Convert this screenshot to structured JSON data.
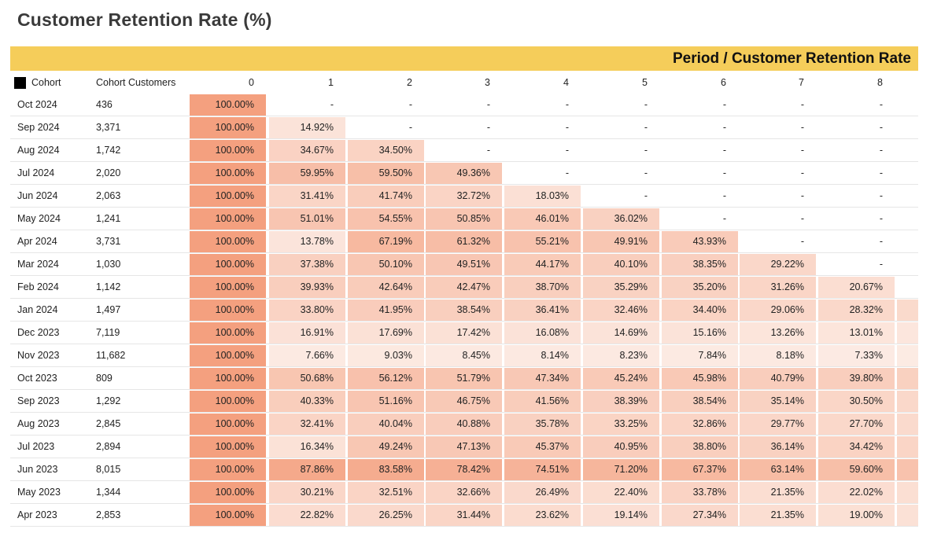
{
  "title": "Customer Retention Rate (%)",
  "banner": "Period / Customer Retention Rate",
  "headers": {
    "cohort": "Cohort",
    "customers": "Cohort Customers",
    "periods": [
      "0",
      "1",
      "2",
      "3",
      "4",
      "5",
      "6",
      "7",
      "8"
    ]
  },
  "colors": {
    "banner": "#f5cd5a",
    "legend_box": "#000000",
    "heat_low": "#fdf2ed",
    "heat_high": "#f4a07f"
  },
  "chart_data": {
    "type": "heatmap",
    "title": "Customer Retention Rate (%)",
    "x_title": "Period / Customer Retention Rate",
    "periods": [
      0,
      1,
      2,
      3,
      4,
      5,
      6,
      7,
      8
    ],
    "rows": [
      {
        "cohort": "Oct 2024",
        "customers": "436",
        "cells": [
          "100.00%",
          "-",
          "-",
          "-",
          "-",
          "-",
          "-",
          "-",
          "-"
        ]
      },
      {
        "cohort": "Sep 2024",
        "customers": "3,371",
        "cells": [
          "100.00%",
          "14.92%",
          "-",
          "-",
          "-",
          "-",
          "-",
          "-",
          "-"
        ]
      },
      {
        "cohort": "Aug 2024",
        "customers": "1,742",
        "cells": [
          "100.00%",
          "34.67%",
          "34.50%",
          "-",
          "-",
          "-",
          "-",
          "-",
          "-"
        ]
      },
      {
        "cohort": "Jul 2024",
        "customers": "2,020",
        "cells": [
          "100.00%",
          "59.95%",
          "59.50%",
          "49.36%",
          "-",
          "-",
          "-",
          "-",
          "-"
        ]
      },
      {
        "cohort": "Jun 2024",
        "customers": "2,063",
        "cells": [
          "100.00%",
          "31.41%",
          "41.74%",
          "32.72%",
          "18.03%",
          "-",
          "-",
          "-",
          "-"
        ]
      },
      {
        "cohort": "May 2024",
        "customers": "1,241",
        "cells": [
          "100.00%",
          "51.01%",
          "54.55%",
          "50.85%",
          "46.01%",
          "36.02%",
          "-",
          "-",
          "-"
        ]
      },
      {
        "cohort": "Apr 2024",
        "customers": "3,731",
        "cells": [
          "100.00%",
          "13.78%",
          "67.19%",
          "61.32%",
          "55.21%",
          "49.91%",
          "43.93%",
          "-",
          "-"
        ]
      },
      {
        "cohort": "Mar 2024",
        "customers": "1,030",
        "cells": [
          "100.00%",
          "37.38%",
          "50.10%",
          "49.51%",
          "44.17%",
          "40.10%",
          "38.35%",
          "29.22%",
          "-"
        ]
      },
      {
        "cohort": "Feb 2024",
        "customers": "1,142",
        "cells": [
          "100.00%",
          "39.93%",
          "42.64%",
          "42.47%",
          "38.70%",
          "35.29%",
          "35.20%",
          "31.26%",
          "20.67%"
        ]
      },
      {
        "cohort": "Jan 2024",
        "customers": "1,497",
        "cells": [
          "100.00%",
          "33.80%",
          "41.95%",
          "38.54%",
          "36.41%",
          "32.46%",
          "34.40%",
          "29.06%",
          "28.32%"
        ]
      },
      {
        "cohort": "Dec 2023",
        "customers": "7,119",
        "cells": [
          "100.00%",
          "16.91%",
          "17.69%",
          "17.42%",
          "16.08%",
          "14.69%",
          "15.16%",
          "13.26%",
          "13.01%"
        ]
      },
      {
        "cohort": "Nov 2023",
        "customers": "11,682",
        "cells": [
          "100.00%",
          "7.66%",
          "9.03%",
          "8.45%",
          "8.14%",
          "8.23%",
          "7.84%",
          "8.18%",
          "7.33%"
        ]
      },
      {
        "cohort": "Oct 2023",
        "customers": "809",
        "cells": [
          "100.00%",
          "50.68%",
          "56.12%",
          "51.79%",
          "47.34%",
          "45.24%",
          "45.98%",
          "40.79%",
          "39.80%"
        ]
      },
      {
        "cohort": "Sep 2023",
        "customers": "1,292",
        "cells": [
          "100.00%",
          "40.33%",
          "51.16%",
          "46.75%",
          "41.56%",
          "38.39%",
          "38.54%",
          "35.14%",
          "30.50%"
        ]
      },
      {
        "cohort": "Aug 2023",
        "customers": "2,845",
        "cells": [
          "100.00%",
          "32.41%",
          "40.04%",
          "40.88%",
          "35.78%",
          "33.25%",
          "32.86%",
          "29.77%",
          "27.70%"
        ]
      },
      {
        "cohort": "Jul 2023",
        "customers": "2,894",
        "cells": [
          "100.00%",
          "16.34%",
          "49.24%",
          "47.13%",
          "45.37%",
          "40.95%",
          "38.80%",
          "36.14%",
          "34.42%"
        ]
      },
      {
        "cohort": "Jun 2023",
        "customers": "8,015",
        "cells": [
          "100.00%",
          "87.86%",
          "83.58%",
          "78.42%",
          "74.51%",
          "71.20%",
          "67.37%",
          "63.14%",
          "59.60%"
        ]
      },
      {
        "cohort": "May 2023",
        "customers": "1,344",
        "cells": [
          "100.00%",
          "30.21%",
          "32.51%",
          "32.66%",
          "26.49%",
          "22.40%",
          "33.78%",
          "21.35%",
          "22.02%"
        ]
      },
      {
        "cohort": "Apr 2023",
        "customers": "2,853",
        "cells": [
          "100.00%",
          "22.82%",
          "26.25%",
          "31.44%",
          "23.62%",
          "19.14%",
          "27.34%",
          "21.35%",
          "19.00%"
        ]
      }
    ],
    "truncated_column_after_8": true,
    "truncated_from_row": "Jan 2024"
  }
}
